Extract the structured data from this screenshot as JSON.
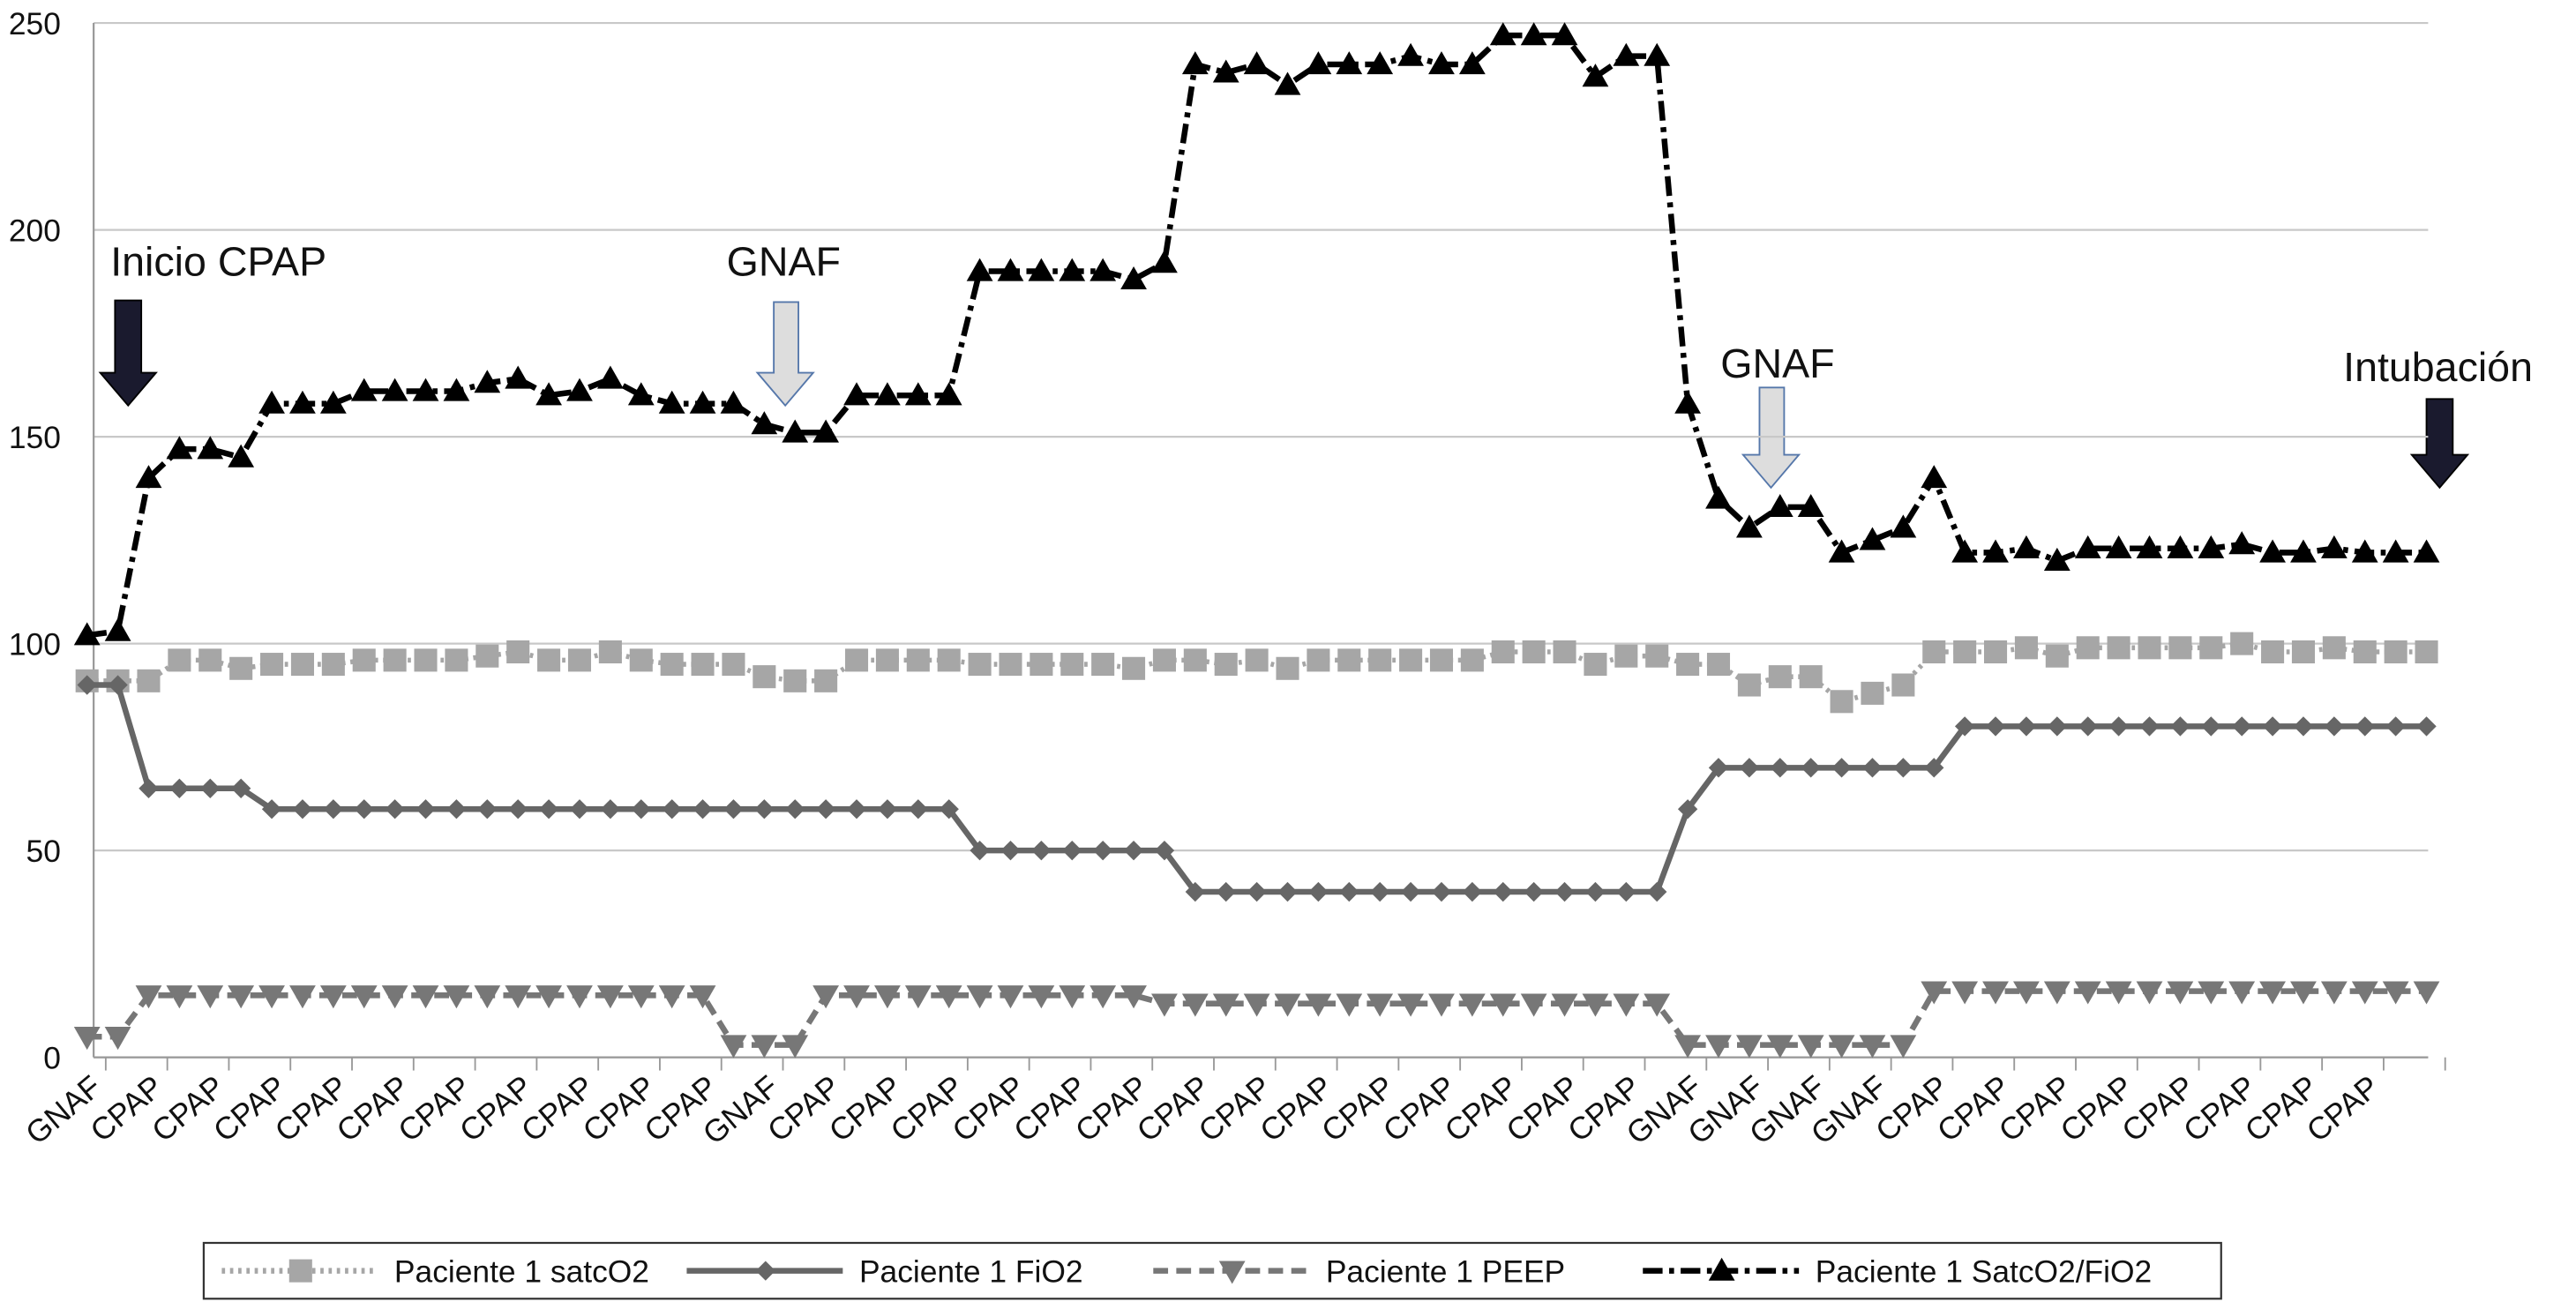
{
  "chart_data": {
    "type": "line",
    "categories": [
      "GNAF",
      null,
      "CPAP",
      null,
      "CPAP",
      null,
      "CPAP",
      null,
      "CPAP",
      null,
      "CPAP",
      null,
      "CPAP",
      null,
      "CPAP",
      null,
      "CPAP",
      null,
      "CPAP",
      null,
      "CPAP",
      null,
      "GNAF",
      null,
      "CPAP",
      null,
      "CPAP",
      null,
      "CPAP",
      null,
      "CPAP",
      null,
      "CPAP",
      null,
      "CPAP",
      null,
      "CPAP",
      null,
      "CPAP",
      null,
      "CPAP",
      null,
      "CPAP",
      null,
      "CPAP",
      null,
      "CPAP",
      null,
      "CPAP",
      null,
      "CPAP",
      null,
      "GNAF",
      null,
      "GNAF",
      null,
      "GNAF",
      null,
      "GNAF",
      null,
      "CPAP",
      null,
      "CPAP",
      null,
      "CPAP",
      null,
      "CPAP",
      null,
      "CPAP",
      null,
      "CPAP",
      null,
      "CPAP",
      null,
      "CPAP",
      null,
      null
    ],
    "series": [
      {
        "name": "Paciente 1 satcO2",
        "color": "#a6a6a6",
        "dash": "dotted",
        "marker": "square",
        "values": [
          91,
          91,
          91,
          96,
          96,
          94,
          95,
          95,
          95,
          96,
          96,
          96,
          96,
          97,
          98,
          96,
          96,
          98,
          96,
          95,
          95,
          95,
          92,
          91,
          91,
          96,
          96,
          96,
          96,
          95,
          95,
          95,
          95,
          95,
          94,
          96,
          96,
          95,
          96,
          94,
          96,
          96,
          96,
          96,
          96,
          96,
          98,
          98,
          98,
          95,
          97,
          97,
          95,
          95,
          90,
          92,
          92,
          86,
          88,
          90,
          98,
          98,
          98,
          99,
          97,
          99,
          99,
          99,
          99,
          99,
          100,
          98,
          98,
          99,
          98,
          98,
          98
        ]
      },
      {
        "name": "Paciente 1 FiO2",
        "color": "#666666",
        "dash": "solid",
        "marker": "diamond",
        "values": [
          90,
          90,
          65,
          65,
          65,
          65,
          60,
          60,
          60,
          60,
          60,
          60,
          60,
          60,
          60,
          60,
          60,
          60,
          60,
          60,
          60,
          60,
          60,
          60,
          60,
          60,
          60,
          60,
          60,
          50,
          50,
          50,
          50,
          50,
          50,
          50,
          40,
          40,
          40,
          40,
          40,
          40,
          40,
          40,
          40,
          40,
          40,
          40,
          40,
          40,
          40,
          40,
          60,
          70,
          70,
          70,
          70,
          70,
          70,
          70,
          70,
          80,
          80,
          80,
          80,
          80,
          80,
          80,
          80,
          80,
          80,
          80,
          80,
          80,
          80,
          80,
          80
        ]
      },
      {
        "name": "Paciente 1 PEEP",
        "color": "#777777",
        "dash": "dashed",
        "marker": "triangle-down",
        "values": [
          5,
          5,
          15,
          15,
          15,
          15,
          15,
          15,
          15,
          15,
          15,
          15,
          15,
          15,
          15,
          15,
          15,
          15,
          15,
          15,
          15,
          3,
          3,
          3,
          15,
          15,
          15,
          15,
          15,
          15,
          15,
          15,
          15,
          15,
          15,
          13,
          13,
          13,
          13,
          13,
          13,
          13,
          13,
          13,
          13,
          13,
          13,
          13,
          13,
          13,
          13,
          13,
          3,
          3,
          3,
          3,
          3,
          3,
          3,
          3,
          16,
          16,
          16,
          16,
          16,
          16,
          16,
          16,
          16,
          16,
          16,
          16,
          16,
          16,
          16,
          16,
          16
        ]
      },
      {
        "name": "Paciente 1 SatcO2/FiO2",
        "color": "#000000",
        "dash": "dashdot",
        "marker": "triangle-up",
        "values": [
          102,
          103,
          140,
          147,
          147,
          145,
          158,
          158,
          158,
          161,
          161,
          161,
          161,
          163,
          164,
          160,
          161,
          164,
          160,
          158,
          158,
          158,
          153,
          151,
          151,
          160,
          160,
          160,
          160,
          190,
          190,
          190,
          190,
          190,
          188,
          192,
          240,
          238,
          240,
          235,
          240,
          240,
          240,
          242,
          240,
          240,
          247,
          247,
          247,
          237,
          242,
          242,
          158,
          135,
          128,
          133,
          133,
          122,
          125,
          128,
          140,
          122,
          122,
          123,
          120,
          123,
          123,
          123,
          123,
          123,
          124,
          122,
          122,
          123,
          122,
          122,
          122
        ]
      }
    ],
    "annotations": [
      "Inicio CPAP",
      "GNAF",
      "GNAF",
      "Intubación"
    ],
    "ylim": [
      0,
      250
    ],
    "yticks": [
      0,
      50,
      100,
      150,
      200,
      250
    ],
    "grid": true,
    "legend": "bottom"
  }
}
